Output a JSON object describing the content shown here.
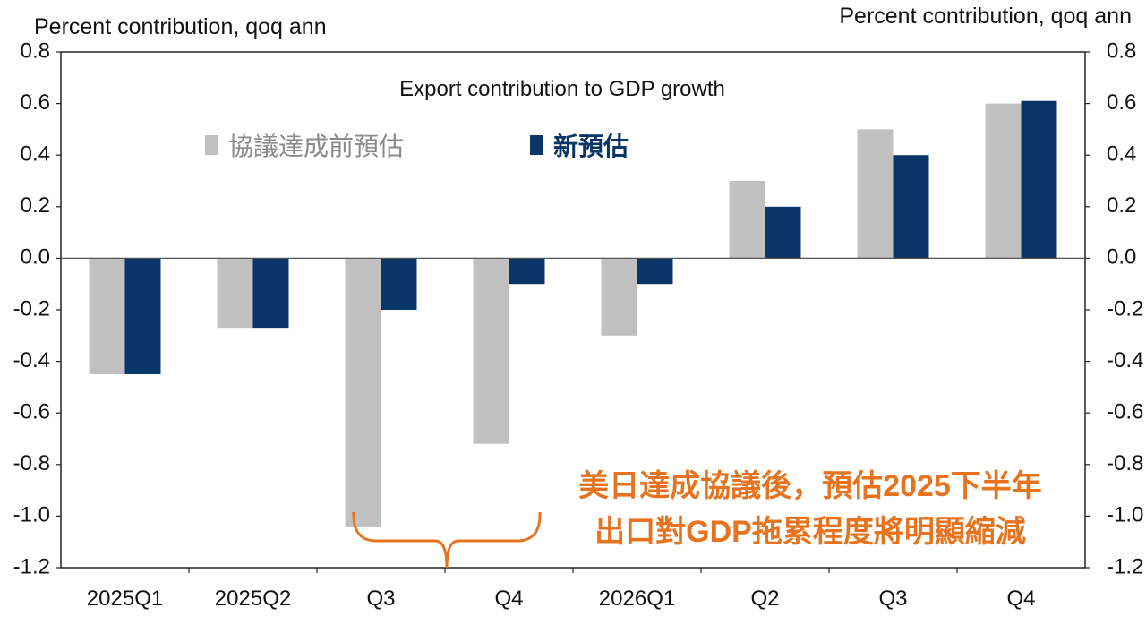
{
  "chart_data": {
    "type": "bar",
    "title": "Export contribution to GDP growth",
    "ylabel_left": "Percent contribution, qoq ann",
    "ylabel_right": "Percent contribution, qoq ann",
    "categories": [
      "2025Q1",
      "2025Q2",
      "Q3",
      "Q4",
      "2026Q1",
      "Q2",
      "Q3",
      "Q4"
    ],
    "series": [
      {
        "name": "協議達成前預估",
        "color": "#c0c0c0",
        "values": [
          -0.45,
          -0.27,
          -1.04,
          -0.72,
          -0.3,
          0.3,
          0.5,
          0.6
        ]
      },
      {
        "name": "新預估",
        "color": "#0b3566",
        "values": [
          -0.45,
          -0.27,
          -0.2,
          -0.1,
          -0.1,
          0.2,
          0.4,
          0.61
        ]
      }
    ],
    "ylim": [
      -1.2,
      0.8
    ],
    "yticks_left": [
      "0.8",
      "0.6",
      "0.4",
      "0.2",
      "0.0",
      "-0.2",
      "-0.4",
      "-0.6",
      "-0.8",
      "-1.0",
      "-1.2"
    ],
    "yticks_right": [
      "0.8",
      "0.6",
      "0.4",
      "0.2",
      "0.0",
      "-0.2",
      "-0.4",
      "-0.6",
      "-0.8",
      "-1.0",
      "-1.2"
    ],
    "annotation": {
      "lines": [
        "美日達成協議後，預估2025下半年",
        "出口對GDP拖累程度將明顯縮減"
      ],
      "color": "#e8731e"
    }
  }
}
